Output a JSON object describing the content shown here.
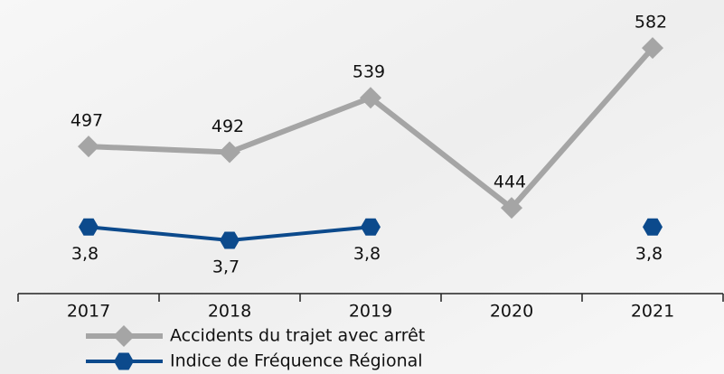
{
  "chart_data": {
    "type": "line",
    "categories": [
      "2017",
      "2018",
      "2019",
      "2020",
      "2021"
    ],
    "series": [
      {
        "name": "Accidents du trajet avec arrêt",
        "color": "#a5a5a5",
        "marker": "diamond",
        "values": [
          497,
          492,
          539,
          444,
          582
        ]
      },
      {
        "name": "Indice de Fréquence Régional",
        "color": "#0c4a8c",
        "marker": "hexagon",
        "axis": "y2",
        "values": [
          3.8,
          3.7,
          3.8,
          null,
          3.8
        ],
        "value_labels": [
          "3,8",
          "3,7",
          "3,8",
          null,
          "3,8"
        ]
      }
    ],
    "ylim": [
      370,
      600
    ],
    "y2lim": [
      3.3,
      5.3
    ]
  }
}
